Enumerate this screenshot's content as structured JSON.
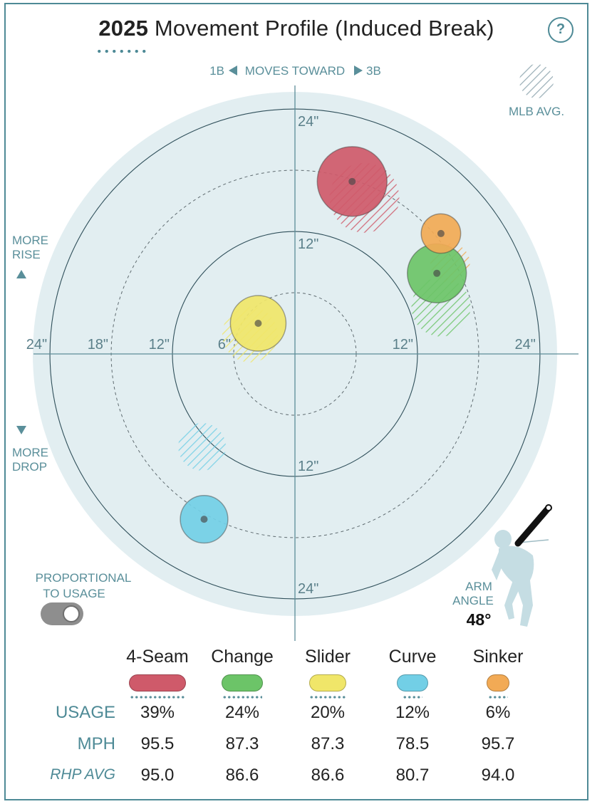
{
  "header": {
    "year": "2025",
    "title": "Movement Profile (Induced Break)",
    "help_label": "?"
  },
  "direction": {
    "left": "1B",
    "middle": "MOVES TOWARD",
    "right": "3B"
  },
  "mlb_avg_label": "MLB AVG.",
  "rise_label": [
    "MORE",
    "RISE"
  ],
  "drop_label": [
    "MORE",
    "DROP"
  ],
  "toggle": {
    "label": [
      "PROPORTIONAL",
      "TO USAGE"
    ],
    "on": true
  },
  "arm_angle": {
    "label": [
      "ARM",
      "ANGLE"
    ],
    "value": "48°"
  },
  "chart_data": {
    "type": "scatter",
    "title": "2025 Movement Profile (Induced Break)",
    "x_axis": {
      "label": "MOVES TOWARD",
      "negative_side": "1B",
      "positive_side": "3B",
      "unit": "inches"
    },
    "y_axis": {
      "positive_side": "MORE RISE",
      "negative_side": "MORE DROP",
      "unit": "inches"
    },
    "xlim": [
      -28,
      28
    ],
    "ylim": [
      -28,
      28
    ],
    "rings": [
      6,
      12,
      18,
      24
    ],
    "tick_labels": {
      "x": [
        {
          "value": -24,
          "label": "24\""
        },
        {
          "value": -18,
          "label": "18\""
        },
        {
          "value": -12,
          "label": "12\""
        },
        {
          "value": -6,
          "label": "6\""
        },
        {
          "value": 12,
          "label": "12\""
        },
        {
          "value": 24,
          "label": "24\""
        }
      ],
      "y": [
        {
          "value": 24,
          "label": "24\""
        },
        {
          "value": 12,
          "label": "12\""
        },
        {
          "value": -12,
          "label": "12\""
        },
        {
          "value": -24,
          "label": "24\""
        }
      ]
    },
    "series": [
      {
        "name": "4-Seam",
        "color": "#cf5a6a",
        "x": 5.6,
        "y": 16.9,
        "usage_pct": 39,
        "avg_x": 6.8,
        "avg_y": 15.3
      },
      {
        "name": "Change",
        "color": "#6cc468",
        "x": 13.9,
        "y": 7.9,
        "usage_pct": 24,
        "avg_x": 14.3,
        "avg_y": 4.6
      },
      {
        "name": "Slider",
        "color": "#f0e669",
        "x": -3.6,
        "y": 3.0,
        "usage_pct": 20,
        "avg_x": -4.4,
        "avg_y": 1.9
      },
      {
        "name": "Curve",
        "color": "#72cfe6",
        "x": -8.9,
        "y": -16.2,
        "usage_pct": 12,
        "avg_x": -9.1,
        "avg_y": -9.1
      },
      {
        "name": "Sinker",
        "color": "#f2aa55",
        "x": 14.3,
        "y": 11.8,
        "usage_pct": 6,
        "avg_x": 15.2,
        "avg_y": 8.9
      }
    ]
  },
  "table": {
    "row_labels": {
      "usage": "USAGE",
      "mph": "MPH",
      "rhp_avg": "RHP AVG"
    },
    "pitches": [
      {
        "name": "4-Seam",
        "color": "#cf5a6a",
        "usage": "39%",
        "mph": "95.5",
        "rhp_avg": "95.0"
      },
      {
        "name": "Change",
        "color": "#6cc468",
        "usage": "24%",
        "mph": "87.3",
        "rhp_avg": "86.6"
      },
      {
        "name": "Slider",
        "color": "#f0e669",
        "usage": "20%",
        "mph": "87.3",
        "rhp_avg": "86.6"
      },
      {
        "name": "Curve",
        "color": "#72cfe6",
        "usage": "12%",
        "mph": "78.5",
        "rhp_avg": "80.7"
      },
      {
        "name": "Sinker",
        "color": "#f2aa55",
        "usage": "6%",
        "mph": "95.7",
        "rhp_avg": "94.0"
      }
    ]
  }
}
